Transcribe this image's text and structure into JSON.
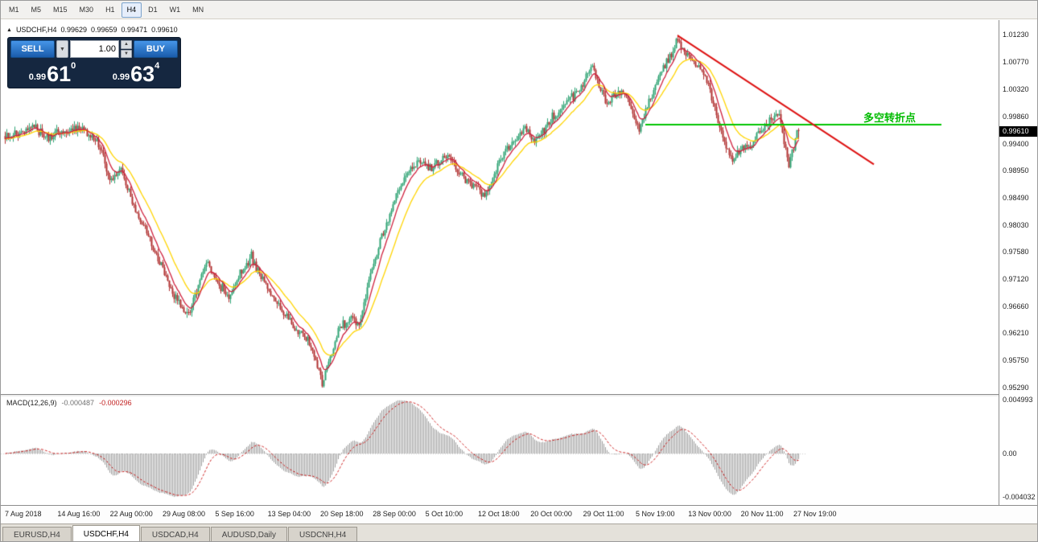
{
  "toolbar": {
    "timeframes": [
      {
        "label": "M1",
        "active": false
      },
      {
        "label": "M5",
        "active": false
      },
      {
        "label": "M15",
        "active": false
      },
      {
        "label": "M30",
        "active": false
      },
      {
        "label": "H1",
        "active": false
      },
      {
        "label": "H4",
        "active": true
      },
      {
        "label": "D1",
        "active": false
      },
      {
        "label": "W1",
        "active": false
      },
      {
        "label": "MN",
        "active": false
      }
    ]
  },
  "chart": {
    "symbol_title": "USDCHF,H4",
    "ohlc": {
      "open": "0.99629",
      "high": "0.99659",
      "low": "0.99471",
      "close": "0.99610"
    },
    "trade_panel": {
      "sell_label": "SELL",
      "buy_label": "BUY",
      "volume": "1.00",
      "sell_price_small": "0.99",
      "sell_price_big": "61",
      "sell_price_sup": "0",
      "buy_price_small": "0.99",
      "buy_price_big": "63",
      "buy_price_sup": "4"
    },
    "annotation": {
      "text": "多空转折点",
      "color": "#00BB00"
    },
    "current_price": "0.99610",
    "y_axis_labels": [
      "1.01230",
      "1.00770",
      "1.00320",
      "0.99860",
      "0.99400",
      "0.98950",
      "0.98490",
      "0.98030",
      "0.97580",
      "0.97120",
      "0.96660",
      "0.96210",
      "0.95750",
      "0.95290"
    ],
    "x_axis_labels": [
      "7 Aug 2018",
      "14 Aug 16:00",
      "22 Aug 00:00",
      "29 Aug 08:00",
      "5 Sep 16:00",
      "13 Sep 04:00",
      "20 Sep 18:00",
      "28 Sep 00:00",
      "5 Oct 10:00",
      "12 Oct 18:00",
      "20 Oct 00:00",
      "29 Oct 11:00",
      "5 Nov 19:00",
      "13 Nov 00:00",
      "20 Nov 11:00",
      "27 Nov 19:00"
    ]
  },
  "macd": {
    "label": "MACD(12,26,9)",
    "value_main": "-0.000487",
    "value_signal": "-0.000296",
    "axis_labels": [
      "0.004993",
      "0.00",
      "-0.004032"
    ]
  },
  "tabs": [
    {
      "label": "EURUSD,H4",
      "active": false
    },
    {
      "label": "USDCHF,H4",
      "active": true
    },
    {
      "label": "USDCAD,H4",
      "active": false
    },
    {
      "label": "AUDUSD,Daily",
      "active": false
    },
    {
      "label": "USDCNH,H4",
      "active": false
    }
  ],
  "chart_data": {
    "type": "candlestick",
    "symbol": "USDCHF",
    "timeframe": "H4",
    "bars": 494,
    "seed": 20181130,
    "price_axis_range": {
      "top": 1.0137,
      "bottom": 0.9521
    },
    "anchors": [
      [
        0,
        0.9952
      ],
      [
        10,
        0.996
      ],
      [
        18,
        0.9968
      ],
      [
        27,
        0.995
      ],
      [
        35,
        0.9958
      ],
      [
        45,
        0.9966
      ],
      [
        55,
        0.9952
      ],
      [
        60,
        0.9928
      ],
      [
        65,
        0.9872
      ],
      [
        72,
        0.9896
      ],
      [
        80,
        0.9834
      ],
      [
        88,
        0.9792
      ],
      [
        95,
        0.9748
      ],
      [
        103,
        0.9692
      ],
      [
        109,
        0.9668
      ],
      [
        114,
        0.9652
      ],
      [
        120,
        0.9703
      ],
      [
        126,
        0.974
      ],
      [
        133,
        0.97
      ],
      [
        139,
        0.9676
      ],
      [
        146,
        0.9722
      ],
      [
        153,
        0.9747
      ],
      [
        160,
        0.9712
      ],
      [
        168,
        0.9672
      ],
      [
        175,
        0.9652
      ],
      [
        181,
        0.9622
      ],
      [
        188,
        0.9612
      ],
      [
        193,
        0.9572
      ],
      [
        197,
        0.9536
      ],
      [
        202,
        0.958
      ],
      [
        207,
        0.9625
      ],
      [
        214,
        0.9645
      ],
      [
        220,
        0.9638
      ],
      [
        227,
        0.9716
      ],
      [
        233,
        0.9778
      ],
      [
        239,
        0.9818
      ],
      [
        245,
        0.9866
      ],
      [
        252,
        0.9898
      ],
      [
        258,
        0.9912
      ],
      [
        265,
        0.9898
      ],
      [
        273,
        0.992
      ],
      [
        279,
        0.9904
      ],
      [
        285,
        0.988
      ],
      [
        293,
        0.9864
      ],
      [
        298,
        0.985
      ],
      [
        304,
        0.989
      ],
      [
        310,
        0.9924
      ],
      [
        317,
        0.9948
      ],
      [
        323,
        0.9966
      ],
      [
        329,
        0.9944
      ],
      [
        335,
        0.9964
      ],
      [
        343,
        0.9994
      ],
      [
        350,
        1.0016
      ],
      [
        357,
        1.0032
      ],
      [
        362,
        1.0055
      ],
      [
        365,
        1.0068
      ],
      [
        369,
        1.004
      ],
      [
        374,
        1.0006
      ],
      [
        379,
        1.002
      ],
      [
        384,
        1.0028
      ],
      [
        389,
        1.0
      ],
      [
        394,
        0.9962
      ],
      [
        400,
        1.001
      ],
      [
        407,
        1.0056
      ],
      [
        413,
        1.0088
      ],
      [
        418,
        1.0112
      ],
      [
        422,
        1.0096
      ],
      [
        427,
        1.008
      ],
      [
        432,
        1.007
      ],
      [
        437,
        1.0038
      ],
      [
        442,
        0.9986
      ],
      [
        447,
        0.994
      ],
      [
        452,
        0.9914
      ],
      [
        457,
        0.9928
      ],
      [
        462,
        0.9934
      ],
      [
        467,
        0.9954
      ],
      [
        472,
        0.997
      ],
      [
        477,
        0.9984
      ],
      [
        481,
        0.9992
      ],
      [
        484,
        0.9944
      ],
      [
        487,
        0.9902
      ],
      [
        490,
        0.9934
      ],
      [
        493,
        0.9961
      ]
    ],
    "extremes": {
      "low_bar": 197,
      "low": 0.9529,
      "high_bar": 418,
      "high": 1.0123
    },
    "last_candle": {
      "open": 0.99629,
      "high": 0.99659,
      "low": 0.99471,
      "close": 0.9961
    },
    "ma_fast": {
      "period": 8,
      "color": "#CE1F3C"
    },
    "ma_slow": {
      "period": 20,
      "color": "#FFD400"
    },
    "macd_settings": {
      "fast": 12,
      "slow": 26,
      "signal": 9
    },
    "trendline": {
      "from_bar": 418,
      "from_price": 1.0122,
      "to_bar": 540,
      "to_price": 0.9905,
      "color": "#DD1111"
    },
    "hline": {
      "price": 0.9972,
      "from_bar": 398,
      "to_bar": 582,
      "color": "#00C400"
    },
    "colors": {
      "up": "#2FA374",
      "down": "#B03030",
      "macd_hist": "#9b9b9b",
      "macd_signal": "#CC2020"
    }
  }
}
